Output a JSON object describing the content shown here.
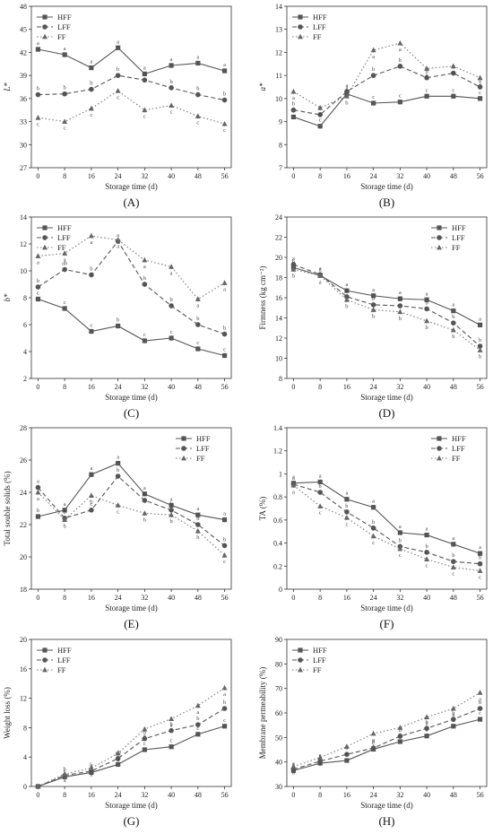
{
  "x_label": "Storage time (d)",
  "series_names": [
    "HFF",
    "LFF",
    "FF"
  ],
  "series_styles": [
    {
      "color": "#555555",
      "dash": "",
      "marker": "square"
    },
    {
      "color": "#555555",
      "dash": "5,3",
      "marker": "circle"
    },
    {
      "color": "#777777",
      "dash": "1.5,2.5",
      "marker": "triangle"
    }
  ],
  "chart_data": [
    {
      "panel": "(A)",
      "type": "line",
      "ylabel": "L*",
      "ylabel_italic": true,
      "x": [
        0,
        8,
        16,
        24,
        32,
        40,
        48,
        56
      ],
      "xlim": [
        -2,
        58
      ],
      "ylim": [
        27,
        48
      ],
      "yticks": [
        27,
        30,
        33,
        36,
        39,
        42,
        45,
        48
      ],
      "legend_position": "top-left",
      "series": [
        {
          "name": "HFF",
          "values": [
            42.4,
            41.7,
            40.0,
            42.6,
            39.2,
            40.3,
            40.6,
            39.6
          ],
          "letters": [
            "a",
            "a",
            "a",
            "a",
            "a",
            "a",
            "a",
            "a"
          ]
        },
        {
          "name": "LFF",
          "values": [
            36.5,
            36.6,
            37.2,
            39.0,
            38.4,
            37.4,
            36.5,
            35.8
          ],
          "letters": [
            "b",
            "b",
            "b",
            "b",
            "b",
            "b",
            "b",
            "b"
          ]
        },
        {
          "name": "FF",
          "values": [
            33.5,
            33.0,
            34.7,
            37.0,
            34.5,
            35.1,
            33.7,
            32.7
          ],
          "letters": [
            "c",
            "c",
            "c",
            "c",
            "c",
            "c",
            "c",
            "c"
          ]
        }
      ]
    },
    {
      "panel": "(B)",
      "type": "line",
      "ylabel": "a*",
      "ylabel_italic": true,
      "x": [
        0,
        8,
        16,
        24,
        32,
        40,
        48,
        56
      ],
      "xlim": [
        -2,
        58
      ],
      "ylim": [
        7,
        14
      ],
      "yticks": [
        7,
        8,
        9,
        10,
        11,
        12,
        13,
        14
      ],
      "legend_position": "top-left",
      "series": [
        {
          "name": "HFF",
          "values": [
            9.2,
            8.8,
            10.2,
            9.8,
            9.85,
            10.1,
            10.1,
            10.0
          ],
          "letters": [
            "c",
            "c",
            "a",
            "c",
            "c",
            "c",
            "c",
            "c"
          ]
        },
        {
          "name": "LFF",
          "values": [
            9.5,
            9.3,
            10.3,
            11.0,
            11.4,
            10.9,
            11.1,
            10.5
          ],
          "letters": [
            "b",
            "b",
            "a",
            "b",
            "b",
            "b",
            "b",
            "b"
          ]
        },
        {
          "name": "FF",
          "values": [
            10.3,
            9.6,
            10.1,
            12.1,
            12.4,
            11.3,
            11.4,
            10.9
          ],
          "letters": [
            "a",
            "a",
            "b",
            "a",
            "a",
            "a",
            "a",
            "a"
          ]
        }
      ]
    },
    {
      "panel": "(C)",
      "type": "line",
      "ylabel": "b*",
      "ylabel_italic": true,
      "x": [
        0,
        8,
        16,
        24,
        32,
        40,
        48,
        56
      ],
      "xlim": [
        -2,
        58
      ],
      "ylim": [
        2,
        14
      ],
      "yticks": [
        2,
        4,
        6,
        8,
        10,
        12,
        14
      ],
      "legend_position": "top-left",
      "series": [
        {
          "name": "HFF",
          "values": [
            7.9,
            7.2,
            5.5,
            5.9,
            4.8,
            5.0,
            4.2,
            3.7
          ],
          "letters": [
            "c",
            "c",
            "c",
            "b",
            "c",
            "c",
            "c",
            "c"
          ]
        },
        {
          "name": "LFF",
          "values": [
            8.8,
            10.1,
            9.7,
            12.2,
            9.0,
            7.4,
            6.0,
            5.3
          ],
          "letters": [
            "b",
            "ab",
            "b",
            "a",
            "b",
            "b",
            "b",
            "b"
          ]
        },
        {
          "name": "FF",
          "values": [
            11.1,
            11.3,
            12.6,
            12.3,
            10.8,
            10.3,
            7.9,
            9.1
          ],
          "letters": [
            "a",
            "a",
            "a",
            "a",
            "a",
            "a",
            "a",
            "a"
          ]
        }
      ]
    },
    {
      "panel": "(D)",
      "type": "line",
      "ylabel": "Firmness (kg cm⁻²)",
      "ylabel_italic": false,
      "x": [
        0,
        8,
        16,
        24,
        32,
        40,
        48,
        56
      ],
      "xlim": [
        -2,
        58
      ],
      "ylim": [
        8,
        24
      ],
      "yticks": [
        8,
        10,
        12,
        14,
        16,
        18,
        20,
        22,
        24
      ],
      "legend_position": "top-right",
      "series": [
        {
          "name": "HFF",
          "values": [
            19.0,
            18.2,
            16.7,
            16.2,
            15.9,
            15.8,
            14.7,
            13.3
          ],
          "letters": [
            "b",
            "a",
            "a",
            "a",
            "a",
            "a",
            "a",
            "a"
          ]
        },
        {
          "name": "LFF",
          "values": [
            19.3,
            18.3,
            16.1,
            15.3,
            15.2,
            14.9,
            13.5,
            11.2
          ],
          "letters": [
            "a",
            "a",
            "b",
            "b",
            "b",
            "b",
            "b",
            "b"
          ]
        },
        {
          "name": "FF",
          "values": [
            18.8,
            18.2,
            15.8,
            14.8,
            14.6,
            13.7,
            12.8,
            10.8
          ],
          "letters": [
            "b",
            "a",
            "b",
            "b",
            "b",
            "b",
            "b",
            "b"
          ]
        }
      ]
    },
    {
      "panel": "(E)",
      "type": "line",
      "ylabel": "Total souble solids (%)",
      "ylabel_italic": false,
      "x": [
        0,
        8,
        16,
        24,
        32,
        40,
        48,
        56
      ],
      "xlim": [
        -2,
        58
      ],
      "ylim": [
        18,
        28
      ],
      "yticks": [
        18,
        20,
        22,
        24,
        26,
        28
      ],
      "legend_position": "top-right",
      "series": [
        {
          "name": "HFF",
          "values": [
            22.5,
            22.9,
            25.1,
            25.8,
            23.9,
            23.2,
            22.6,
            22.3
          ],
          "letters": [
            "b",
            "a",
            "a",
            "a",
            "a",
            "a",
            "a",
            "a"
          ]
        },
        {
          "name": "LFF",
          "values": [
            24.3,
            22.4,
            22.9,
            25.0,
            23.5,
            22.9,
            22.0,
            20.7
          ],
          "letters": [
            "a",
            "b",
            "c",
            "b",
            "b",
            "b",
            "b",
            "b"
          ]
        },
        {
          "name": "FF",
          "values": [
            24.0,
            22.3,
            23.8,
            23.2,
            22.7,
            22.6,
            21.6,
            20.1
          ],
          "letters": [
            "a",
            "b",
            "b",
            "c",
            "b",
            "b",
            "b",
            "c"
          ]
        }
      ]
    },
    {
      "panel": "(F)",
      "type": "line",
      "ylabel": "TA (%)",
      "ylabel_italic": false,
      "x": [
        0,
        8,
        16,
        24,
        32,
        40,
        48,
        56
      ],
      "xlim": [
        -2,
        58
      ],
      "ylim": [
        0,
        1.4
      ],
      "yticks": [
        0,
        0.2,
        0.4,
        0.6,
        0.8,
        1.0,
        1.2,
        1.4
      ],
      "legend_position": "top-right",
      "series": [
        {
          "name": "HFF",
          "values": [
            0.92,
            0.93,
            0.78,
            0.71,
            0.49,
            0.47,
            0.39,
            0.31
          ],
          "letters": [
            "a",
            "a",
            "a",
            "a",
            "a",
            "a",
            "a",
            "a"
          ]
        },
        {
          "name": "LFF",
          "values": [
            0.91,
            0.84,
            0.67,
            0.53,
            0.37,
            0.32,
            0.24,
            0.22
          ],
          "letters": [
            "a",
            "b",
            "b",
            "b",
            "b",
            "b",
            "b",
            "b"
          ]
        },
        {
          "name": "FF",
          "values": [
            0.9,
            0.72,
            0.62,
            0.46,
            0.35,
            0.26,
            0.19,
            0.16
          ],
          "letters": [
            "a",
            "c",
            "c",
            "c",
            "c",
            "c",
            "c",
            "c"
          ]
        }
      ]
    },
    {
      "panel": "(G)",
      "type": "line",
      "ylabel": "Weight loss (%)",
      "ylabel_italic": false,
      "x": [
        0,
        8,
        16,
        24,
        32,
        40,
        48,
        56
      ],
      "xlim": [
        -2,
        58
      ],
      "ylim": [
        0,
        20
      ],
      "yticks": [
        0,
        4,
        8,
        12,
        16,
        20
      ],
      "legend_position": "top-left",
      "series": [
        {
          "name": "HFF",
          "values": [
            0.0,
            1.3,
            1.9,
            3.0,
            5.0,
            5.4,
            7.1,
            8.2
          ],
          "letters": [
            "",
            "c",
            "c",
            "c",
            "c",
            "c",
            "c",
            "c"
          ]
        },
        {
          "name": "LFF",
          "values": [
            0.0,
            1.5,
            2.1,
            3.8,
            6.5,
            7.6,
            8.4,
            10.6
          ],
          "letters": [
            "",
            "b",
            "b",
            "ab",
            "b",
            "b",
            "b",
            "b"
          ]
        },
        {
          "name": "FF",
          "values": [
            0.0,
            1.7,
            2.5,
            4.5,
            7.8,
            9.2,
            11.0,
            13.4
          ],
          "letters": [
            "",
            "a",
            "a",
            "a",
            "a",
            "a",
            "a",
            "a"
          ]
        }
      ]
    },
    {
      "panel": "(H)",
      "type": "line",
      "ylabel": "Membrane permeability (%)",
      "ylabel_italic": false,
      "x": [
        0,
        8,
        16,
        24,
        32,
        40,
        48,
        56
      ],
      "xlim": [
        -2,
        58
      ],
      "ylim": [
        30,
        90
      ],
      "yticks": [
        30,
        40,
        50,
        60,
        70,
        80,
        90
      ],
      "legend_position": "top-left",
      "series": [
        {
          "name": "HFF",
          "values": [
            36.5,
            39.5,
            40.6,
            45.2,
            48.3,
            50.6,
            54.6,
            57.4
          ],
          "letters": [
            "a",
            "b",
            "c",
            "c",
            "c",
            "c",
            "c",
            "c"
          ]
        },
        {
          "name": "LFF",
          "values": [
            37.0,
            40.3,
            43.1,
            45.7,
            50.5,
            53.7,
            57.4,
            61.8
          ],
          "letters": [
            "a",
            "a",
            "b",
            "b",
            "b",
            "b",
            "b",
            "b"
          ]
        },
        {
          "name": "FF",
          "values": [
            38.2,
            41.8,
            46.3,
            51.6,
            54.0,
            58.3,
            61.8,
            68.3
          ],
          "letters": [
            "a",
            "a",
            "a",
            "a",
            "a",
            "a",
            "a",
            "a"
          ]
        }
      ]
    }
  ]
}
